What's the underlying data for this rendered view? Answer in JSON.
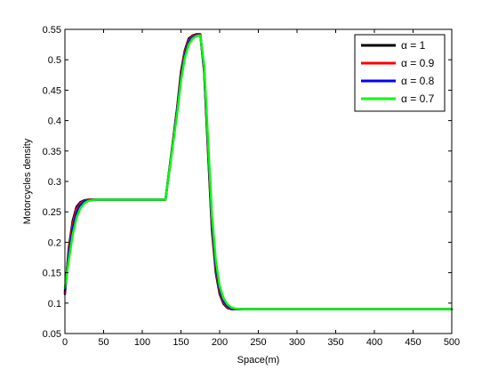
{
  "chart_data": {
    "type": "line",
    "title": "",
    "xlabel": "Space(m)",
    "ylabel": "Motorcycles density",
    "xlim": [
      0,
      500
    ],
    "ylim": [
      0.05,
      0.55
    ],
    "xticks": [
      0,
      50,
      100,
      150,
      200,
      250,
      300,
      350,
      400,
      450,
      500
    ],
    "yticks": [
      0.05,
      0.1,
      0.15,
      0.2,
      0.25,
      0.3,
      0.35,
      0.4,
      0.45,
      0.5,
      0.55
    ],
    "xtick_labels": [
      "0",
      "50",
      "100",
      "150",
      "200",
      "250",
      "300",
      "350",
      "400",
      "450",
      "500"
    ],
    "ytick_labels": [
      "0.05",
      "0.1",
      "0.15",
      "0.2",
      "0.25",
      "0.3",
      "0.35",
      "0.4",
      "0.45",
      "0.5",
      "0.55"
    ],
    "grid": false,
    "legend_position": "top-right",
    "series": [
      {
        "name": "α = 1",
        "color": "#000000",
        "x": [
          0,
          5,
          10,
          15,
          20,
          25,
          30,
          40,
          60,
          100,
          130,
          140,
          145,
          150,
          155,
          160,
          165,
          170,
          175,
          180,
          185,
          190,
          195,
          200,
          205,
          210,
          215,
          220,
          230,
          300,
          400,
          500
        ],
        "y": [
          0.115,
          0.19,
          0.235,
          0.258,
          0.266,
          0.269,
          0.27,
          0.27,
          0.27,
          0.27,
          0.27,
          0.37,
          0.42,
          0.48,
          0.515,
          0.535,
          0.54,
          0.542,
          0.542,
          0.48,
          0.35,
          0.22,
          0.15,
          0.115,
          0.099,
          0.092,
          0.09,
          0.09,
          0.09,
          0.09,
          0.09,
          0.09
        ]
      },
      {
        "name": "α = 0.9",
        "color": "#ff0000",
        "x": [
          0,
          5,
          10,
          15,
          20,
          25,
          30,
          40,
          60,
          100,
          130,
          140,
          145,
          150,
          155,
          160,
          165,
          170,
          175,
          180,
          185,
          190,
          195,
          200,
          205,
          210,
          215,
          220,
          230,
          300,
          400,
          500
        ],
        "y": [
          0.117,
          0.185,
          0.23,
          0.254,
          0.264,
          0.268,
          0.27,
          0.27,
          0.27,
          0.27,
          0.27,
          0.368,
          0.418,
          0.475,
          0.512,
          0.532,
          0.539,
          0.541,
          0.541,
          0.482,
          0.355,
          0.227,
          0.156,
          0.119,
          0.101,
          0.093,
          0.09,
          0.09,
          0.09,
          0.09,
          0.09,
          0.09
        ]
      },
      {
        "name": "α = 0.8",
        "color": "#0000ff",
        "x": [
          0,
          5,
          10,
          15,
          20,
          25,
          30,
          40,
          60,
          100,
          130,
          140,
          145,
          150,
          155,
          160,
          165,
          170,
          175,
          180,
          185,
          190,
          195,
          200,
          205,
          210,
          215,
          220,
          230,
          300,
          400,
          500
        ],
        "y": [
          0.12,
          0.178,
          0.222,
          0.248,
          0.261,
          0.267,
          0.269,
          0.27,
          0.27,
          0.27,
          0.27,
          0.366,
          0.415,
          0.47,
          0.508,
          0.529,
          0.537,
          0.54,
          0.54,
          0.485,
          0.362,
          0.235,
          0.162,
          0.123,
          0.104,
          0.095,
          0.091,
          0.09,
          0.09,
          0.09,
          0.09,
          0.09
        ]
      },
      {
        "name": "α = 0.7",
        "color": "#00ff00",
        "x": [
          0,
          5,
          10,
          15,
          20,
          25,
          30,
          40,
          60,
          100,
          130,
          140,
          145,
          150,
          155,
          160,
          165,
          170,
          175,
          180,
          185,
          190,
          195,
          200,
          205,
          210,
          215,
          220,
          230,
          300,
          400,
          500
        ],
        "y": [
          0.125,
          0.17,
          0.212,
          0.24,
          0.256,
          0.264,
          0.268,
          0.27,
          0.27,
          0.27,
          0.27,
          0.364,
          0.41,
          0.465,
          0.503,
          0.525,
          0.535,
          0.539,
          0.54,
          0.49,
          0.37,
          0.245,
          0.17,
          0.128,
          0.108,
          0.098,
          0.093,
          0.091,
          0.09,
          0.09,
          0.09,
          0.09
        ]
      }
    ]
  }
}
